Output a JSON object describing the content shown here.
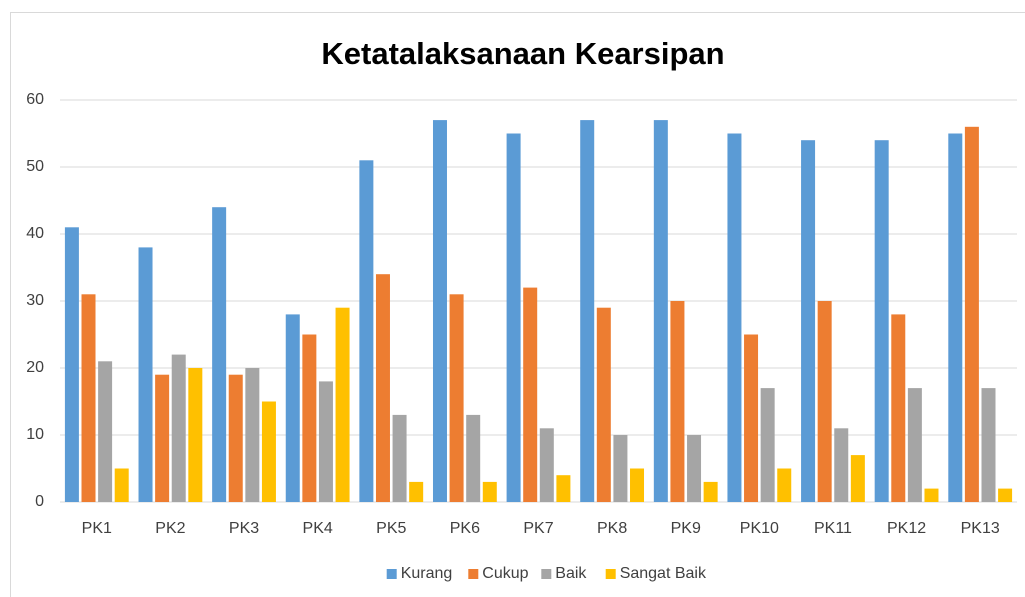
{
  "chart_data": {
    "type": "bar",
    "title": "Ketatalaksanaan Kearsipan",
    "categories": [
      "PK1",
      "PK2",
      "PK3",
      "PK4",
      "PK5",
      "PK6",
      "PK7",
      "PK8",
      "PK9",
      "PK10",
      "PK11",
      "PK12",
      "PK13"
    ],
    "series": [
      {
        "name": "Kurang",
        "color": "#5b9bd5",
        "values": [
          41,
          38,
          44,
          28,
          51,
          57,
          55,
          57,
          57,
          55,
          54,
          54,
          55
        ]
      },
      {
        "name": "Cukup",
        "color": "#ed7d31",
        "values": [
          31,
          19,
          19,
          25,
          34,
          31,
          32,
          29,
          30,
          25,
          30,
          28,
          56
        ]
      },
      {
        "name": "Baik",
        "color": "#a5a5a5",
        "values": [
          21,
          22,
          20,
          18,
          13,
          13,
          11,
          10,
          10,
          17,
          11,
          17,
          17
        ]
      },
      {
        "name": "Sangat Baik",
        "color": "#ffc000",
        "values": [
          5,
          20,
          15,
          29,
          3,
          3,
          4,
          5,
          3,
          5,
          7,
          2,
          2
        ]
      }
    ],
    "ylim": [
      0,
      60
    ],
    "yticks": [
      0,
      10,
      20,
      30,
      40,
      50,
      60
    ],
    "grid": true,
    "legend": "bottom"
  }
}
